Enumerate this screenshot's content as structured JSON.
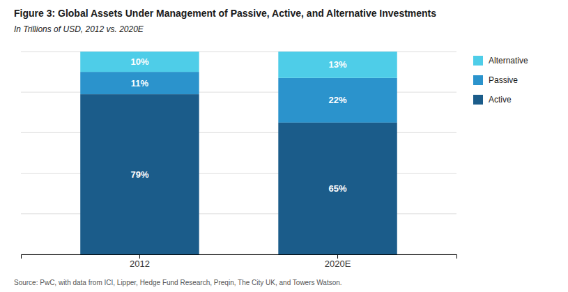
{
  "chart_data": {
    "type": "bar",
    "stacked": true,
    "title": "Figure 3: Global Assets Under Management of Passive, Active, and Alternative Investments",
    "subtitle": "In Trillions of USD, 2012 vs. 2020E",
    "annotations": [
      "Source: PwC, with data from ICI, Lipper, Hedge Fund Research, Preqin, The City UK, and Towers Watson."
    ],
    "categories": [
      "2012",
      "2020E"
    ],
    "series": [
      {
        "name": "Active",
        "color": "#1b5c8a",
        "values": [
          79,
          65
        ],
        "value_labels": [
          "79%",
          "65%"
        ]
      },
      {
        "name": "Passive",
        "color": "#2b93cc",
        "values": [
          11,
          22
        ],
        "value_labels": [
          "11%",
          "22%"
        ]
      },
      {
        "name": "Alternative",
        "color": "#4ecde8",
        "values": [
          10,
          13
        ],
        "value_labels": [
          "10%",
          "13%"
        ]
      }
    ],
    "ylim": [
      0,
      100
    ],
    "yticks": [
      0,
      20,
      40,
      60,
      80,
      100
    ],
    "grid": true,
    "legend": "right",
    "data_labels": true,
    "tick_labels": "x"
  }
}
